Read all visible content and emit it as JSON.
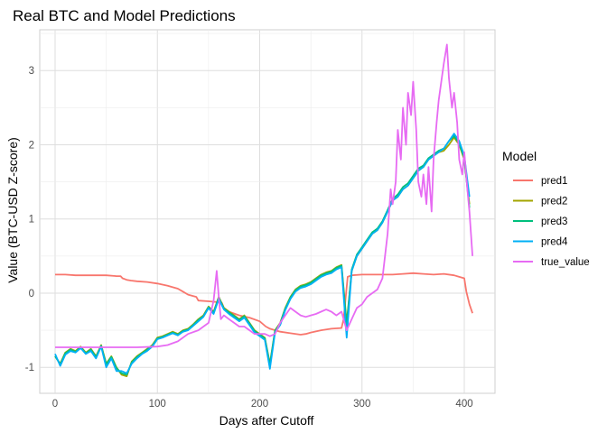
{
  "chart_data": {
    "type": "line",
    "title": "Real BTC and Model Predictions",
    "xlabel": "Days after Cutoff",
    "ylabel": "Value (BTC-USD Z-score)",
    "xlim": [
      -15,
      430
    ],
    "ylim": [
      -1.35,
      3.55
    ],
    "x_ticks": [
      0,
      100,
      200,
      300,
      400
    ],
    "y_ticks": [
      -1,
      0,
      1,
      2,
      3
    ],
    "grid": true,
    "legend": {
      "title": "Model",
      "position": "right"
    },
    "series": [
      {
        "name": "pred1",
        "color": "#F8766D",
        "x": [
          0,
          10,
          20,
          30,
          40,
          50,
          60,
          64,
          66,
          70,
          74,
          80,
          90,
          100,
          110,
          120,
          125,
          130,
          138,
          140,
          150,
          158,
          160,
          163,
          165,
          170,
          180,
          190,
          200,
          206,
          210,
          220,
          230,
          240,
          245,
          250,
          260,
          270,
          280,
          282,
          286,
          290,
          300,
          310,
          320,
          330,
          340,
          350,
          360,
          370,
          380,
          390,
          395,
          400,
          402,
          405,
          408
        ],
        "values": [
          0.25,
          0.25,
          0.24,
          0.24,
          0.24,
          0.24,
          0.23,
          0.23,
          0.2,
          0.18,
          0.17,
          0.16,
          0.15,
          0.13,
          0.1,
          0.06,
          0.02,
          -0.02,
          -0.05,
          -0.1,
          -0.11,
          -0.12,
          -0.12,
          -0.13,
          -0.2,
          -0.25,
          -0.3,
          -0.33,
          -0.38,
          -0.45,
          -0.48,
          -0.52,
          -0.54,
          -0.56,
          -0.55,
          -0.53,
          -0.5,
          -0.48,
          -0.47,
          -0.35,
          0.22,
          0.24,
          0.25,
          0.25,
          0.25,
          0.25,
          0.26,
          0.27,
          0.26,
          0.25,
          0.26,
          0.24,
          0.22,
          0.2,
          0.02,
          -0.15,
          -0.27
        ]
      },
      {
        "name": "pred2",
        "color": "#A3A500",
        "x": [
          0,
          5,
          10,
          15,
          20,
          25,
          30,
          35,
          40,
          45,
          50,
          55,
          60,
          65,
          70,
          75,
          80,
          85,
          90,
          95,
          100,
          105,
          110,
          115,
          120,
          125,
          130,
          135,
          140,
          145,
          150,
          155,
          160,
          165,
          170,
          175,
          180,
          185,
          190,
          195,
          200,
          205,
          210,
          215,
          220,
          225,
          230,
          235,
          240,
          245,
          250,
          255,
          260,
          265,
          270,
          275,
          280,
          285,
          290,
          295,
          300,
          305,
          310,
          315,
          320,
          325,
          330,
          335,
          340,
          345,
          350,
          355,
          360,
          365,
          370,
          375,
          380,
          385,
          390,
          395,
          400,
          405
        ],
        "values": [
          -0.85,
          -0.95,
          -0.8,
          -0.75,
          -0.78,
          -0.72,
          -0.8,
          -0.75,
          -0.85,
          -0.7,
          -0.95,
          -0.85,
          -1.0,
          -1.1,
          -1.12,
          -0.92,
          -0.85,
          -0.8,
          -0.75,
          -0.7,
          -0.6,
          -0.58,
          -0.55,
          -0.52,
          -0.55,
          -0.5,
          -0.48,
          -0.42,
          -0.35,
          -0.3,
          -0.18,
          -0.25,
          -0.05,
          -0.2,
          -0.25,
          -0.3,
          -0.35,
          -0.3,
          -0.4,
          -0.5,
          -0.55,
          -0.6,
          -0.95,
          -0.5,
          -0.4,
          -0.2,
          -0.05,
          0.05,
          0.1,
          0.12,
          0.15,
          0.2,
          0.25,
          0.28,
          0.3,
          0.35,
          0.38,
          -0.4,
          0.3,
          0.5,
          0.6,
          0.7,
          0.8,
          0.85,
          0.95,
          1.1,
          1.25,
          1.3,
          1.4,
          1.45,
          1.55,
          1.65,
          1.7,
          1.8,
          1.85,
          1.9,
          1.92,
          2.0,
          2.1,
          2.0,
          1.8,
          1.2
        ]
      },
      {
        "name": "pred3",
        "color": "#00BF7D",
        "x": [
          0,
          5,
          10,
          15,
          20,
          25,
          30,
          35,
          40,
          45,
          50,
          55,
          60,
          65,
          70,
          75,
          80,
          85,
          90,
          95,
          100,
          105,
          110,
          115,
          120,
          125,
          130,
          135,
          140,
          145,
          150,
          155,
          160,
          165,
          170,
          175,
          180,
          185,
          190,
          195,
          200,
          205,
          210,
          215,
          220,
          225,
          230,
          235,
          240,
          245,
          250,
          255,
          260,
          265,
          270,
          275,
          280,
          285,
          290,
          295,
          300,
          305,
          310,
          315,
          320,
          325,
          330,
          335,
          340,
          345,
          350,
          355,
          360,
          365,
          370,
          375,
          380,
          385,
          390,
          395,
          400,
          405
        ],
        "values": [
          -0.85,
          -0.96,
          -0.81,
          -0.76,
          -0.79,
          -0.73,
          -0.81,
          -0.76,
          -0.86,
          -0.71,
          -0.96,
          -0.86,
          -1.01,
          -1.08,
          -1.1,
          -0.93,
          -0.86,
          -0.81,
          -0.76,
          -0.71,
          -0.61,
          -0.59,
          -0.56,
          -0.53,
          -0.56,
          -0.51,
          -0.49,
          -0.43,
          -0.36,
          -0.31,
          -0.19,
          -0.26,
          -0.06,
          -0.21,
          -0.26,
          -0.31,
          -0.36,
          -0.31,
          -0.41,
          -0.51,
          -0.56,
          -0.61,
          -0.97,
          -0.51,
          -0.41,
          -0.21,
          -0.06,
          0.04,
          0.09,
          0.11,
          0.14,
          0.19,
          0.24,
          0.27,
          0.29,
          0.34,
          0.37,
          -0.45,
          0.32,
          0.52,
          0.62,
          0.72,
          0.82,
          0.87,
          0.97,
          1.12,
          1.27,
          1.33,
          1.43,
          1.48,
          1.58,
          1.68,
          1.72,
          1.82,
          1.87,
          1.92,
          1.95,
          2.05,
          2.12,
          2.02,
          1.82,
          1.15
        ]
      },
      {
        "name": "pred4",
        "color": "#00B0F6",
        "x": [
          0,
          5,
          10,
          15,
          20,
          25,
          30,
          35,
          40,
          45,
          50,
          55,
          60,
          65,
          70,
          75,
          80,
          85,
          90,
          95,
          100,
          105,
          110,
          115,
          120,
          125,
          130,
          135,
          140,
          145,
          150,
          155,
          160,
          165,
          170,
          175,
          180,
          185,
          190,
          195,
          200,
          205,
          210,
          215,
          220,
          225,
          230,
          235,
          240,
          245,
          250,
          255,
          260,
          265,
          270,
          275,
          280,
          285,
          290,
          295,
          300,
          305,
          310,
          315,
          320,
          325,
          330,
          335,
          340,
          345,
          350,
          355,
          360,
          365,
          370,
          375,
          380,
          385,
          390,
          395,
          400,
          405
        ],
        "values": [
          -0.82,
          -0.98,
          -0.83,
          -0.78,
          -0.8,
          -0.74,
          -0.82,
          -0.78,
          -0.88,
          -0.72,
          -1.0,
          -0.88,
          -1.05,
          -1.05,
          -1.08,
          -0.95,
          -0.88,
          -0.82,
          -0.78,
          -0.72,
          -0.62,
          -0.6,
          -0.57,
          -0.54,
          -0.57,
          -0.52,
          -0.5,
          -0.44,
          -0.38,
          -0.32,
          -0.2,
          -0.28,
          -0.08,
          -0.22,
          -0.28,
          -0.33,
          -0.38,
          -0.33,
          -0.43,
          -0.53,
          -0.58,
          -0.63,
          -1.02,
          -0.53,
          -0.43,
          -0.23,
          -0.08,
          0.02,
          0.07,
          0.09,
          0.12,
          0.17,
          0.22,
          0.25,
          0.27,
          0.32,
          0.35,
          -0.6,
          0.3,
          0.5,
          0.6,
          0.7,
          0.8,
          0.85,
          0.95,
          1.1,
          1.25,
          1.3,
          1.4,
          1.45,
          1.55,
          1.65,
          1.7,
          1.8,
          1.85,
          1.9,
          1.95,
          2.05,
          2.15,
          2.05,
          1.85,
          1.3
        ]
      },
      {
        "name": "true_value",
        "color": "#E76BF3",
        "x": [
          0,
          20,
          40,
          60,
          80,
          100,
          110,
          120,
          130,
          140,
          150,
          155,
          158,
          160,
          162,
          165,
          170,
          175,
          180,
          185,
          190,
          195,
          200,
          205,
          210,
          215,
          220,
          225,
          230,
          235,
          240,
          245,
          250,
          255,
          260,
          265,
          270,
          275,
          280,
          285,
          290,
          295,
          300,
          305,
          310,
          315,
          320,
          325,
          328,
          330,
          333,
          335,
          338,
          340,
          343,
          345,
          348,
          350,
          353,
          355,
          358,
          360,
          363,
          365,
          368,
          370,
          373,
          375,
          378,
          380,
          383,
          385,
          388,
          390,
          393,
          395,
          398,
          400,
          403,
          405,
          408
        ],
        "values": [
          -0.73,
          -0.73,
          -0.73,
          -0.73,
          -0.73,
          -0.72,
          -0.7,
          -0.65,
          -0.55,
          -0.5,
          -0.4,
          -0.1,
          0.3,
          -0.05,
          -0.35,
          -0.3,
          -0.35,
          -0.4,
          -0.45,
          -0.45,
          -0.5,
          -0.55,
          -0.55,
          -0.55,
          -0.58,
          -0.55,
          -0.4,
          -0.3,
          -0.2,
          -0.25,
          -0.3,
          -0.32,
          -0.3,
          -0.28,
          -0.25,
          -0.22,
          -0.25,
          -0.3,
          -0.25,
          -0.5,
          -0.35,
          -0.2,
          -0.15,
          -0.05,
          0.0,
          0.05,
          0.2,
          0.8,
          1.4,
          1.2,
          1.5,
          2.2,
          1.8,
          2.5,
          2.0,
          2.7,
          2.4,
          2.85,
          2.2,
          1.5,
          1.3,
          1.6,
          1.2,
          1.7,
          1.1,
          1.8,
          2.3,
          2.6,
          2.9,
          3.1,
          3.35,
          2.9,
          2.5,
          2.7,
          2.3,
          1.8,
          1.6,
          1.9,
          1.4,
          1.1,
          0.5
        ]
      }
    ]
  }
}
